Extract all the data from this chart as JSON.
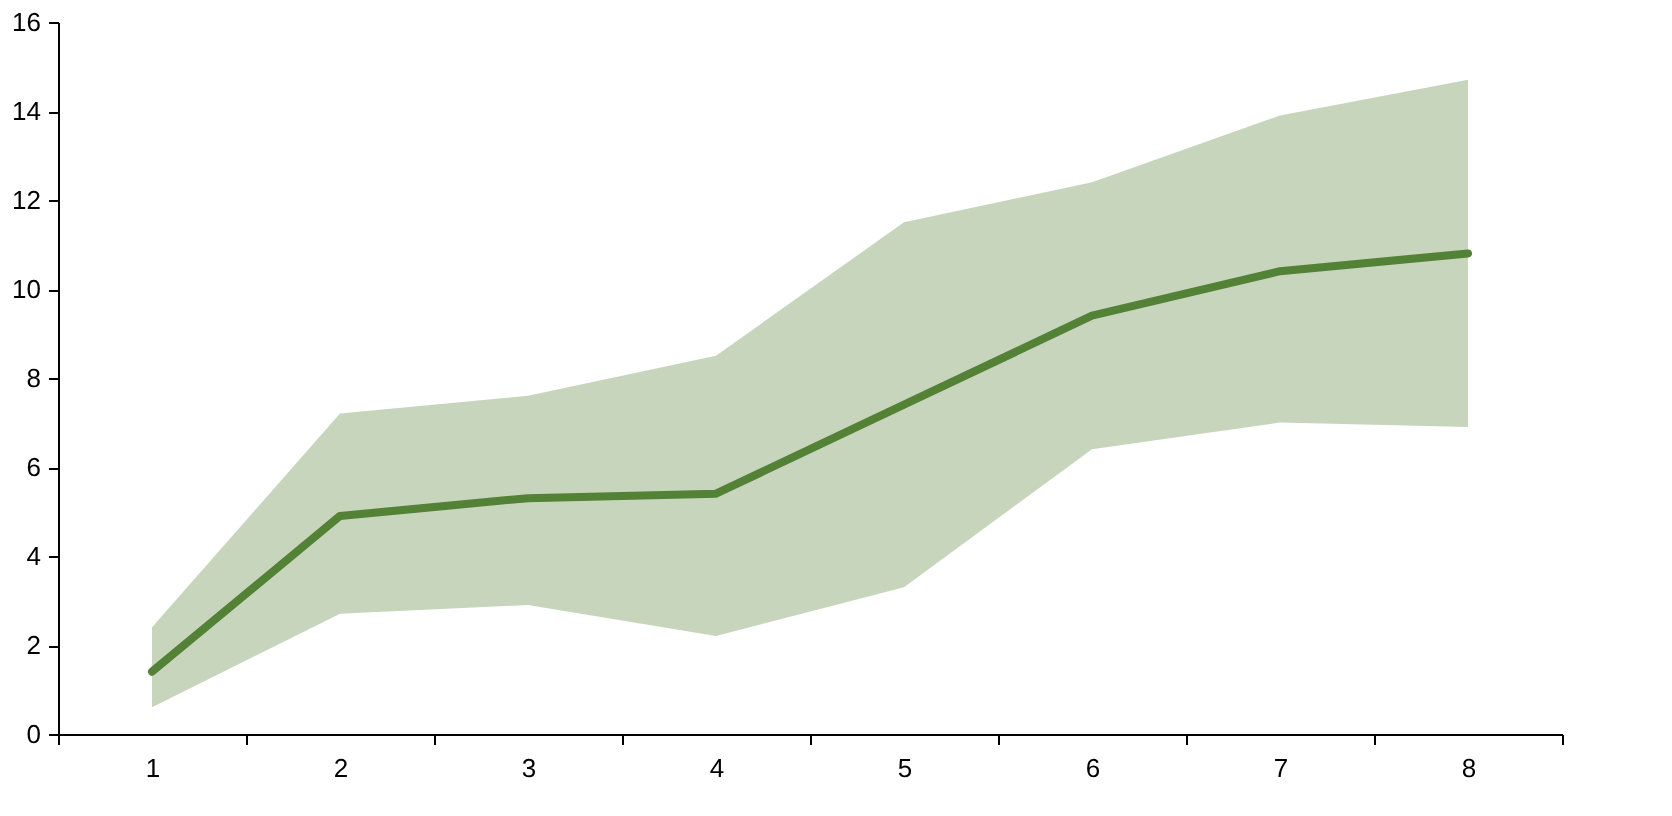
{
  "chart_data": {
    "type": "line",
    "categories": [
      "1",
      "2",
      "3",
      "4",
      "5",
      "6",
      "7",
      "8"
    ],
    "series": [
      {
        "color": "#538135",
        "values": [
          1.4,
          4.9,
          5.3,
          5.4,
          7.4,
          9.4,
          10.4,
          10.8
        ],
        "lower": [
          0.6,
          2.7,
          2.9,
          2.2,
          3.3,
          6.4,
          7.0,
          6.9
        ],
        "upper": [
          2.4,
          7.2,
          7.6,
          8.5,
          11.5,
          12.4,
          13.9,
          14.7
        ]
      }
    ],
    "ylim": [
      0,
      16
    ],
    "yticks": [
      0,
      2,
      4,
      6,
      8,
      10,
      12,
      14,
      16
    ],
    "grid": false,
    "marker": "none",
    "line_style": "solid"
  }
}
